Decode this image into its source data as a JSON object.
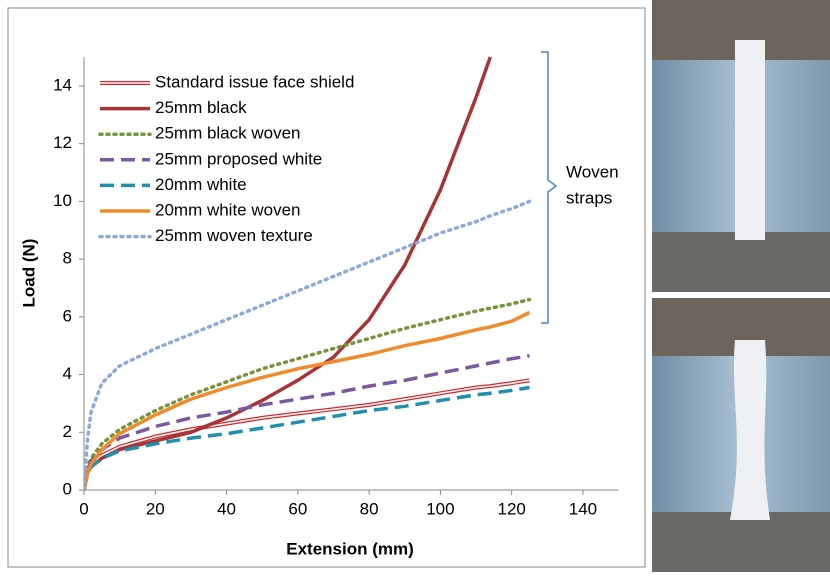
{
  "chart_data": {
    "type": "line",
    "x_label": "Extension (mm)",
    "y_label": "Load (N)",
    "xlim": [
      0,
      150
    ],
    "ylim": [
      0,
      15
    ],
    "xticks": [
      0,
      20,
      40,
      60,
      80,
      100,
      120,
      140
    ],
    "yticks": [
      0,
      2,
      4,
      6,
      8,
      10,
      12,
      14
    ],
    "legend": "top-left",
    "annotation": [
      "Woven",
      "straps"
    ],
    "x": [
      0,
      1,
      2,
      5,
      10,
      20,
      30,
      40,
      50,
      60,
      70,
      80,
      90,
      100,
      110,
      114,
      120,
      125
    ],
    "series": [
      {
        "name": "Standard issue face shield",
        "color": "#d9262b",
        "style": "double",
        "values": [
          0,
          0.7,
          0.9,
          1.2,
          1.5,
          1.85,
          2.1,
          2.3,
          2.5,
          2.65,
          2.8,
          2.95,
          3.15,
          3.35,
          3.55,
          3.6,
          3.7,
          3.8
        ]
      },
      {
        "name": "25mm black",
        "color": "#a83236",
        "style": "solid",
        "values": [
          0,
          0.6,
          0.8,
          1.1,
          1.4,
          1.7,
          2.0,
          2.5,
          3.1,
          3.8,
          4.6,
          5.9,
          7.8,
          10.4,
          13.6,
          15.0,
          null,
          null
        ]
      },
      {
        "name": "25mm black woven",
        "color": "#77933c",
        "style": "dotted",
        "values": [
          0,
          0.8,
          1.1,
          1.6,
          2.1,
          2.75,
          3.3,
          3.75,
          4.2,
          4.55,
          4.9,
          5.25,
          5.6,
          5.9,
          6.2,
          6.3,
          6.45,
          6.6
        ]
      },
      {
        "name": "25mm proposed white",
        "color": "#7a5a9e",
        "style": "dashed",
        "values": [
          0,
          0.7,
          1.0,
          1.4,
          1.8,
          2.2,
          2.5,
          2.7,
          2.95,
          3.15,
          3.35,
          3.6,
          3.8,
          4.05,
          4.3,
          4.4,
          4.55,
          4.65
        ]
      },
      {
        "name": "20mm white",
        "color": "#1f8fad",
        "style": "dashed",
        "values": [
          0,
          0.6,
          0.8,
          1.1,
          1.35,
          1.6,
          1.8,
          1.95,
          2.15,
          2.35,
          2.55,
          2.75,
          2.9,
          3.1,
          3.3,
          3.35,
          3.45,
          3.55
        ]
      },
      {
        "name": "20mm white woven",
        "color": "#f08b2c",
        "style": "solid",
        "values": [
          0,
          0.6,
          0.9,
          1.4,
          1.95,
          2.6,
          3.15,
          3.55,
          3.9,
          4.2,
          4.45,
          4.7,
          5.0,
          5.25,
          5.55,
          5.65,
          5.85,
          6.15
        ]
      },
      {
        "name": "25mm woven texture",
        "color": "#8fa9d9",
        "style": "dotted",
        "values": [
          0,
          1.8,
          2.7,
          3.7,
          4.3,
          4.9,
          5.4,
          5.9,
          6.4,
          6.9,
          7.4,
          7.9,
          8.4,
          8.9,
          9.3,
          9.5,
          9.75,
          10.0
        ]
      }
    ]
  }
}
